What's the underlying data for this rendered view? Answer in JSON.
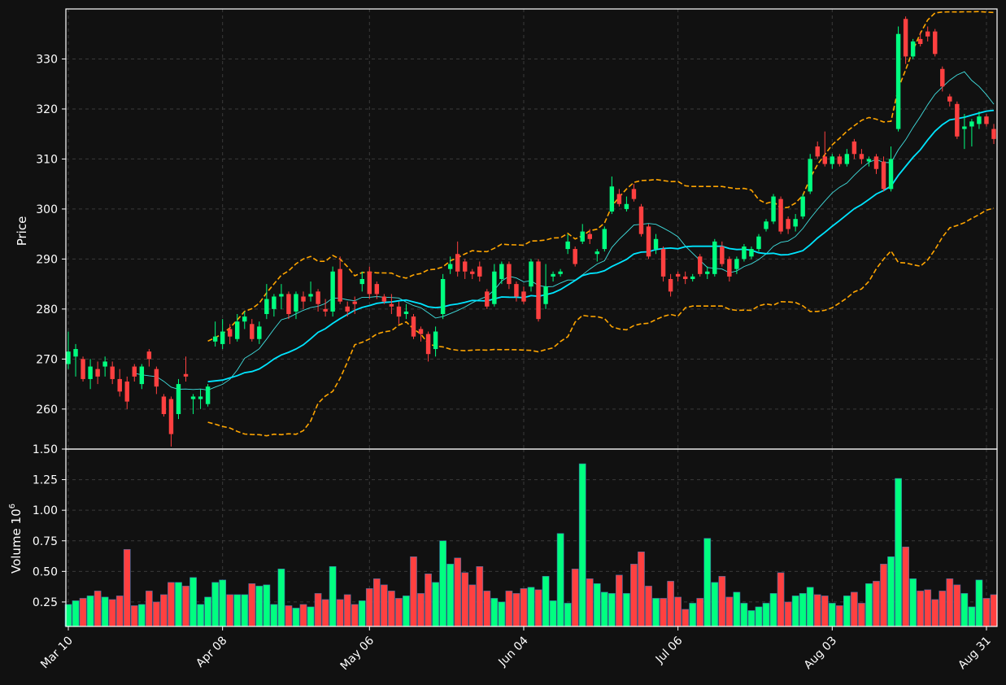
{
  "colors": {
    "background": "#111111",
    "up": "#00ff80",
    "down": "#ff4040",
    "sma_fast": "#40e0e0",
    "sma_slow": "#00e5ff",
    "bollinger": "#ffa500",
    "grid": "#3a3a3a",
    "text": "#ffffff"
  },
  "chart_data": {
    "type": "candlestick",
    "price_ylabel": "Price",
    "volume_ylabel": "Volume",
    "volume_exponent": "10",
    "volume_exponent_power": "6",
    "price_ylim": [
      252,
      340
    ],
    "volume_ylim": [
      0.05,
      1.5
    ],
    "price_ticks": [
      "260",
      "270",
      "280",
      "290",
      "300",
      "310",
      "320",
      "330"
    ],
    "volume_ticks": [
      "0.25",
      "0.50",
      "0.75",
      "1.00",
      "1.25",
      "1.50"
    ],
    "x_ticks": [
      {
        "label": "Mar 10",
        "index": 0
      },
      {
        "label": "Apr 08",
        "index": 21
      },
      {
        "label": "May 06",
        "index": 41
      },
      {
        "label": "Jun 04",
        "index": 62
      },
      {
        "label": "Jul 06",
        "index": 83
      },
      {
        "label": "Aug 03",
        "index": 104
      },
      {
        "label": "Aug 31",
        "index": 125
      }
    ],
    "candles": [
      [
        269.0,
        271.5,
        275.5,
        268.0,
        0.23
      ],
      [
        270.5,
        272.0,
        273.0,
        266.5,
        0.26
      ],
      [
        270.0,
        266.0,
        270.5,
        265.5,
        0.28
      ],
      [
        266.0,
        268.5,
        270.0,
        264.0,
        0.3
      ],
      [
        268.0,
        266.5,
        269.5,
        265.0,
        0.34
      ],
      [
        268.5,
        269.5,
        270.5,
        266.5,
        0.29
      ],
      [
        268.5,
        266.0,
        269.5,
        265.0,
        0.27
      ],
      [
        266.0,
        263.5,
        268.0,
        262.5,
        0.3
      ],
      [
        265.5,
        261.5,
        266.5,
        260.0,
        0.68
      ],
      [
        268.5,
        266.5,
        269.0,
        265.5,
        0.22
      ],
      [
        265.0,
        268.5,
        269.0,
        264.0,
        0.23
      ],
      [
        271.5,
        270.0,
        272.0,
        268.5,
        0.34
      ],
      [
        268.0,
        264.5,
        268.5,
        263.0,
        0.25
      ],
      [
        262.5,
        259.0,
        263.0,
        258.5,
        0.31
      ],
      [
        262.0,
        255.0,
        262.5,
        252.5,
        0.41
      ],
      [
        259.0,
        265.0,
        266.0,
        258.0,
        0.41
      ],
      [
        267.0,
        266.5,
        270.5,
        265.5,
        0.38
      ],
      [
        262.0,
        262.5,
        263.0,
        259.0,
        0.45
      ],
      [
        262.0,
        262.5,
        264.0,
        260.0,
        0.23
      ],
      [
        261.0,
        264.5,
        265.0,
        260.5,
        0.29
      ],
      [
        273.5,
        274.5,
        277.5,
        272.5,
        0.41
      ],
      [
        273.0,
        275.5,
        278.0,
        272.0,
        0.43
      ],
      [
        276.0,
        274.5,
        277.0,
        273.0,
        0.31
      ],
      [
        274.0,
        277.5,
        279.0,
        273.5,
        0.31
      ],
      [
        277.5,
        278.5,
        279.5,
        276.0,
        0.31
      ],
      [
        277.0,
        274.0,
        278.0,
        273.5,
        0.4
      ],
      [
        274.0,
        276.5,
        277.5,
        273.0,
        0.38
      ],
      [
        279.0,
        282.0,
        285.0,
        278.0,
        0.39
      ],
      [
        280.0,
        282.5,
        283.0,
        278.5,
        0.23
      ],
      [
        282.5,
        283.0,
        285.0,
        280.0,
        0.52
      ],
      [
        283.0,
        279.0,
        283.5,
        278.0,
        0.22
      ],
      [
        279.5,
        283.0,
        283.5,
        278.0,
        0.2
      ],
      [
        282.5,
        281.5,
        283.5,
        280.0,
        0.23
      ],
      [
        282.5,
        283.0,
        285.5,
        281.5,
        0.21
      ],
      [
        283.5,
        281.0,
        284.0,
        279.5,
        0.32
      ],
      [
        280.0,
        279.5,
        282.0,
        278.5,
        0.27
      ],
      [
        279.5,
        287.5,
        288.5,
        278.5,
        0.54
      ],
      [
        288.0,
        281.5,
        290.5,
        281.0,
        0.27
      ],
      [
        280.5,
        279.5,
        281.5,
        278.5,
        0.31
      ],
      [
        281.5,
        281.0,
        282.5,
        279.0,
        0.23
      ],
      [
        285.0,
        286.0,
        287.5,
        283.5,
        0.26
      ],
      [
        287.5,
        283.0,
        288.5,
        282.0,
        0.36
      ],
      [
        285.0,
        283.0,
        285.5,
        282.0,
        0.44
      ],
      [
        282.5,
        281.5,
        283.0,
        281.0,
        0.39
      ],
      [
        281.0,
        280.5,
        283.0,
        279.0,
        0.34
      ],
      [
        280.5,
        278.5,
        281.5,
        277.0,
        0.28
      ],
      [
        279.0,
        279.5,
        281.0,
        278.0,
        0.3
      ],
      [
        278.5,
        274.5,
        279.0,
        274.0,
        0.62
      ],
      [
        276.0,
        275.0,
        276.5,
        273.5,
        0.32
      ],
      [
        275.0,
        271.0,
        275.5,
        269.5,
        0.48
      ],
      [
        272.0,
        275.5,
        276.5,
        270.5,
        0.41
      ],
      [
        279.0,
        286.0,
        287.0,
        278.0,
        0.75
      ],
      [
        288.0,
        289.0,
        290.5,
        287.0,
        0.56
      ],
      [
        291.0,
        287.5,
        293.5,
        286.5,
        0.61
      ],
      [
        289.5,
        287.5,
        290.0,
        286.0,
        0.49
      ],
      [
        287.5,
        287.0,
        288.0,
        286.0,
        0.39
      ],
      [
        288.5,
        286.5,
        289.5,
        285.5,
        0.54
      ],
      [
        283.5,
        280.5,
        284.0,
        280.0,
        0.34
      ],
      [
        281.0,
        287.5,
        289.0,
        280.5,
        0.28
      ],
      [
        286.0,
        289.0,
        289.5,
        285.0,
        0.25
      ],
      [
        289.0,
        285.0,
        289.5,
        284.0,
        0.34
      ],
      [
        285.0,
        282.5,
        285.5,
        281.5,
        0.32
      ],
      [
        283.5,
        281.5,
        284.5,
        281.0,
        0.36
      ],
      [
        284.5,
        289.5,
        290.0,
        283.5,
        0.37
      ],
      [
        289.5,
        278.0,
        290.0,
        277.5,
        0.35
      ],
      [
        281.0,
        284.5,
        289.0,
        280.0,
        0.46
      ],
      [
        286.5,
        287.0,
        287.5,
        285.5,
        0.26
      ],
      [
        287.0,
        287.5,
        288.0,
        286.5,
        0.81
      ],
      [
        292.0,
        293.5,
        295.0,
        291.0,
        0.24
      ],
      [
        292.0,
        289.0,
        292.5,
        288.5,
        0.52
      ],
      [
        293.5,
        295.5,
        297.0,
        293.0,
        1.38
      ],
      [
        295.0,
        294.0,
        296.0,
        293.0,
        0.44
      ],
      [
        291.0,
        291.5,
        292.0,
        289.5,
        0.4
      ],
      [
        292.0,
        296.0,
        296.5,
        291.5,
        0.33
      ],
      [
        299.5,
        304.5,
        306.5,
        299.0,
        0.32
      ],
      [
        303.0,
        301.0,
        304.0,
        300.5,
        0.47
      ],
      [
        300.0,
        301.0,
        302.5,
        299.5,
        0.32
      ],
      [
        304.0,
        302.0,
        305.0,
        301.5,
        0.56
      ],
      [
        300.5,
        295.0,
        301.0,
        294.5,
        0.66
      ],
      [
        296.5,
        290.5,
        297.0,
        290.0,
        0.38
      ],
      [
        292.0,
        294.0,
        295.0,
        291.0,
        0.28
      ],
      [
        292.0,
        286.5,
        292.5,
        285.5,
        0.28
      ],
      [
        286.0,
        283.5,
        287.0,
        282.5,
        0.42
      ],
      [
        287.0,
        286.5,
        287.5,
        285.5,
        0.29
      ],
      [
        286.5,
        286.0,
        287.5,
        285.0,
        0.19
      ],
      [
        286.0,
        286.5,
        287.0,
        285.5,
        0.24
      ],
      [
        290.5,
        287.0,
        291.0,
        286.5,
        0.28
      ],
      [
        287.0,
        287.5,
        288.5,
        286.0,
        0.77
      ],
      [
        287.0,
        293.5,
        294.0,
        286.5,
        0.41
      ],
      [
        292.5,
        289.0,
        293.5,
        288.5,
        0.46
      ],
      [
        290.0,
        286.5,
        290.5,
        285.5,
        0.29
      ],
      [
        288.0,
        290.0,
        290.5,
        287.0,
        0.33
      ],
      [
        290.0,
        292.5,
        293.0,
        289.5,
        0.24
      ],
      [
        290.5,
        292.0,
        292.5,
        290.0,
        0.18
      ],
      [
        292.0,
        294.5,
        295.0,
        291.5,
        0.21
      ],
      [
        296.0,
        297.5,
        298.0,
        295.5,
        0.24
      ],
      [
        297.5,
        302.5,
        303.0,
        297.0,
        0.32
      ],
      [
        302.0,
        295.5,
        302.5,
        295.0,
        0.49
      ],
      [
        298.0,
        296.0,
        298.5,
        295.0,
        0.25
      ],
      [
        296.5,
        298.0,
        299.0,
        295.5,
        0.3
      ],
      [
        298.5,
        302.5,
        303.0,
        298.0,
        0.32
      ],
      [
        303.5,
        310.0,
        311.0,
        303.0,
        0.37
      ],
      [
        312.5,
        310.5,
        313.5,
        310.0,
        0.31
      ],
      [
        310.5,
        309.0,
        315.5,
        308.5,
        0.3
      ],
      [
        309.0,
        310.5,
        311.0,
        308.0,
        0.24
      ],
      [
        310.5,
        309.0,
        311.0,
        308.5,
        0.22
      ],
      [
        309.0,
        311.0,
        312.0,
        308.5,
        0.3
      ],
      [
        313.5,
        311.0,
        314.0,
        310.0,
        0.33
      ],
      [
        311.0,
        310.0,
        312.0,
        309.0,
        0.24
      ],
      [
        309.5,
        310.0,
        310.5,
        308.5,
        0.4
      ],
      [
        310.5,
        308.0,
        311.0,
        307.0,
        0.42
      ],
      [
        309.5,
        304.0,
        310.5,
        303.5,
        0.56
      ],
      [
        304.0,
        310.0,
        312.5,
        303.5,
        0.62
      ],
      [
        316.0,
        335.0,
        336.5,
        315.5,
        1.26
      ],
      [
        338.0,
        330.5,
        338.5,
        329.0,
        0.7
      ],
      [
        330.5,
        333.5,
        334.0,
        330.0,
        0.44
      ],
      [
        334.0,
        333.0,
        335.5,
        332.5,
        0.34
      ],
      [
        335.5,
        334.5,
        336.5,
        333.5,
        0.35
      ],
      [
        335.5,
        331.0,
        336.0,
        330.5,
        0.27
      ],
      [
        328.0,
        324.5,
        328.5,
        323.5,
        0.34
      ],
      [
        322.5,
        321.5,
        323.0,
        320.5,
        0.44
      ],
      [
        321.0,
        314.5,
        321.5,
        314.0,
        0.39
      ],
      [
        316.0,
        316.5,
        319.0,
        312.0,
        0.32
      ],
      [
        316.5,
        317.5,
        318.0,
        312.5,
        0.21
      ],
      [
        317.0,
        318.5,
        319.5,
        316.0,
        0.43
      ],
      [
        318.5,
        317.0,
        319.0,
        316.5,
        0.28
      ],
      [
        316.0,
        314.0,
        317.0,
        313.0,
        0.31
      ]
    ]
  }
}
